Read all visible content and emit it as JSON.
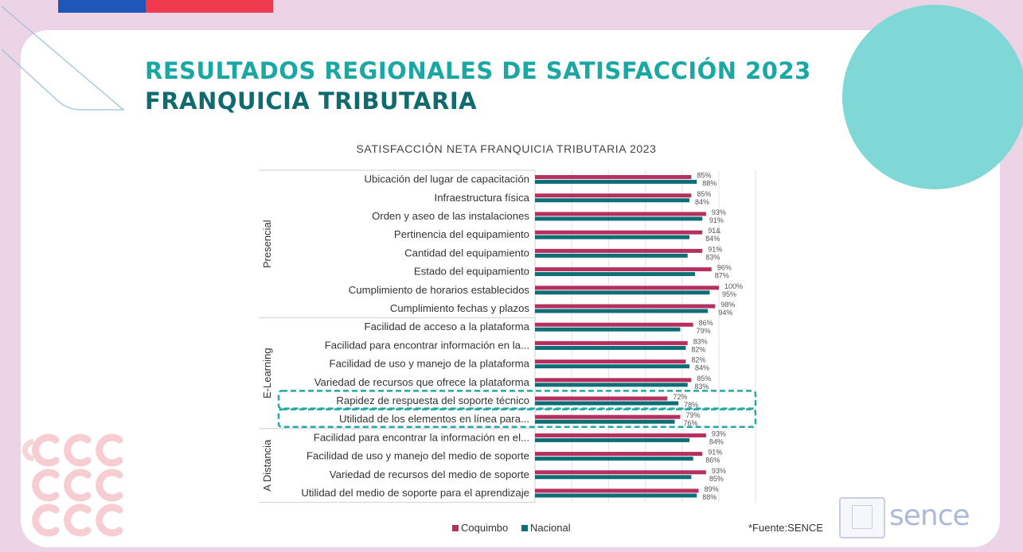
{
  "titles": {
    "line1": "RESULTADOS REGIONALES DE SATISFACCIÓN 2023",
    "line2": "FRANQUICIA TRIBUTARIA"
  },
  "source_note": "*Fuente:SENCE",
  "logo_text": "sence",
  "colors": {
    "coquimbo": "#b5305f",
    "nacional": "#0f6e75",
    "highlight": "#22a9a5",
    "title_light": "#1ba7a3",
    "title_dark": "#0f6b70"
  },
  "chart_data": {
    "type": "bar",
    "orientation": "horizontal",
    "title": "SATISFACCIÓN NETA FRANQUICIA TRIBUTARIA 2023",
    "legend_position": "bottom",
    "xlim": [
      0,
      100
    ],
    "grid": true,
    "groups": [
      {
        "name": "Presencial",
        "start": 0,
        "count": 8
      },
      {
        "name": "E-Learning",
        "start": 8,
        "count": 6
      },
      {
        "name": "A Distancia",
        "start": 14,
        "count": 4
      }
    ],
    "categories": [
      "Ubicación del lugar de capacitación",
      "Infraestructura física",
      "Orden y aseo de las instalaciones",
      "Pertinencia del equipamiento",
      "Cantidad del equipamiento",
      "Estado del equipamiento",
      "Cumplimiento de horarios establecidos",
      "Cumplimiento fechas y plazos",
      "Facilidad de acceso a la plataforma",
      "Facilidad para encontrar información en la...",
      "Facilidad de uso y manejo de la plataforma",
      "Variedad de recursos que ofrece la plataforma",
      "Rapidez de respuesta del soporte técnico",
      "Utilidad de los elementos en línea para...",
      "Facilidad para encontrar la información en el...",
      "Facilidad de uso y manejo del medio de soporte",
      "Variedad de recursos del medio de soporte",
      "Utilidad del medio de soporte para el aprendizaje"
    ],
    "series": [
      {
        "name": "Coquimbo",
        "values": [
          85,
          85,
          93,
          91,
          91,
          96,
          100,
          98,
          86,
          83,
          82,
          85,
          72,
          79,
          93,
          91,
          93,
          89
        ],
        "labels": [
          "85%",
          "85%",
          "93%",
          "91&",
          "91%",
          "96%",
          "100%",
          "98%",
          "86%",
          "83%",
          "82%",
          "85%",
          "72%",
          "79%",
          "93%",
          "91%",
          "93%",
          "89%"
        ]
      },
      {
        "name": "Nacional",
        "values": [
          88,
          84,
          91,
          84,
          83,
          87,
          95,
          94,
          79,
          82,
          84,
          83,
          78,
          76,
          84,
          86,
          85,
          88
        ],
        "labels": [
          "88%",
          "84%",
          "91%",
          "84%",
          "83%",
          "87%",
          "95%",
          "94%",
          "79%",
          "82%",
          "84%",
          "83%",
          "78%",
          "76%",
          "84%",
          "86%",
          "85%",
          "88%"
        ]
      }
    ],
    "highlighted_categories": [
      12,
      13
    ]
  }
}
